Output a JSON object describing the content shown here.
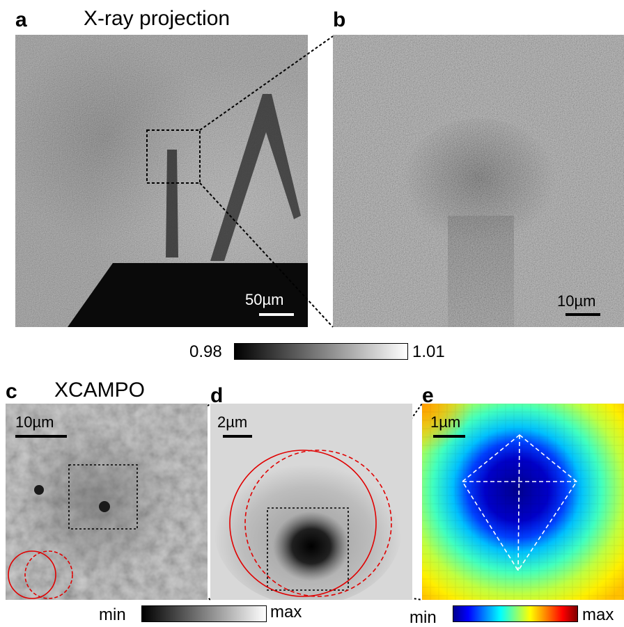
{
  "panels": {
    "a": {
      "label": "a",
      "title": "X-ray projection",
      "scalebar": "50µm"
    },
    "b": {
      "label": "b",
      "scalebar": "10µm"
    },
    "c": {
      "label": "c",
      "title": "XCAMPO",
      "scalebar": "10µm"
    },
    "d": {
      "label": "d",
      "scalebar": "2µm"
    },
    "e": {
      "label": "e",
      "scalebar": "1µm"
    }
  },
  "colorbar_top": {
    "min_label": "0.98",
    "max_label": "1.01",
    "colors": [
      "#000000",
      "#ffffff"
    ]
  },
  "colorbar_bottom_left": {
    "min_label": "min",
    "max_label": "max",
    "colors": [
      "#000000",
      "#ffffff"
    ]
  },
  "colorbar_bottom_right": {
    "min_label": "min",
    "max_label": "max",
    "colors": [
      "#00008f",
      "#0000ff",
      "#00ffff",
      "#ffff00",
      "#ff0000",
      "#800000"
    ]
  },
  "colors": {
    "circle": "#e00000",
    "box": "#000000",
    "guide": "#ffffff"
  }
}
